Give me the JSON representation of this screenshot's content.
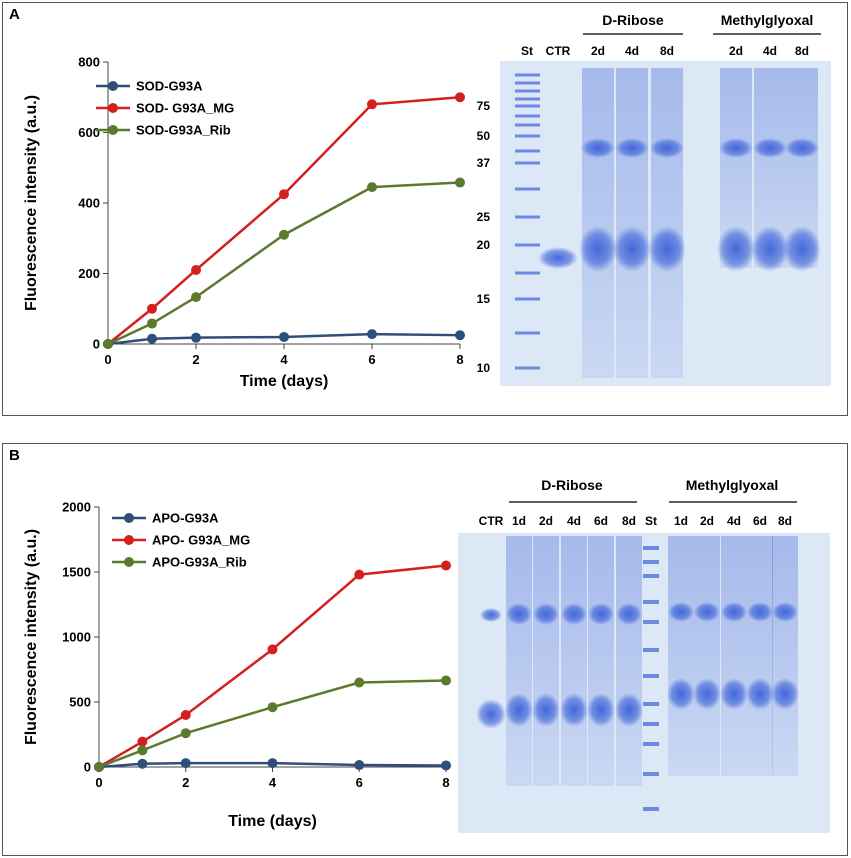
{
  "panels": {
    "a": {
      "label": "A",
      "gel": {
        "lanes": [
          "St",
          "CTR",
          "2d",
          "4d",
          "8d",
          "2d",
          "4d",
          "8d"
        ],
        "groups": [
          "D-Ribose",
          "Methylglyoxal"
        ],
        "markers": [
          "75",
          "50",
          "37",
          "25",
          "20",
          "15",
          "10"
        ]
      }
    },
    "b": {
      "label": "B",
      "gel": {
        "lanes": [
          "CTR",
          "1d",
          "2d",
          "4d",
          "6d",
          "8d",
          "St",
          "1d",
          "2d",
          "4d",
          "6d",
          "8d"
        ],
        "groups": [
          "D-Ribose",
          "Methylglyoxal"
        ]
      }
    }
  },
  "colors": {
    "blue": "#2e4f7a",
    "red": "#d41f1f",
    "green": "#5c7a2e",
    "gel_bg": "#dde8f6",
    "band": "#3d63d8"
  },
  "chart_data": [
    {
      "type": "line",
      "panel": "A",
      "title": "",
      "xlabel": "Time (days)",
      "ylabel": "Fluorescence intensity (a.u.)",
      "x": [
        0,
        1,
        2,
        4,
        6,
        8
      ],
      "xticks": [
        0,
        2,
        4,
        6,
        8
      ],
      "yticks": [
        0,
        200,
        400,
        600,
        800
      ],
      "xlim": [
        0,
        8
      ],
      "ylim": [
        0,
        800
      ],
      "legend_position": "top-left",
      "series": [
        {
          "name": "SOD-G93A",
          "color": "#2e4f7a",
          "values": [
            0,
            15,
            18,
            20,
            28,
            25
          ]
        },
        {
          "name": "SOD- G93A_MG",
          "color": "#d41f1f",
          "values": [
            0,
            100,
            210,
            425,
            680,
            700
          ]
        },
        {
          "name": "SOD-G93A_Rib",
          "color": "#5c7a2e",
          "values": [
            0,
            58,
            133,
            310,
            445,
            458
          ]
        }
      ]
    },
    {
      "type": "line",
      "panel": "B",
      "title": "",
      "xlabel": "Time (days)",
      "ylabel": "Fluorescence intensity (a.u.)",
      "x": [
        0,
        1,
        2,
        4,
        6,
        8
      ],
      "xticks": [
        0,
        2,
        4,
        6,
        8
      ],
      "yticks": [
        0,
        500,
        1000,
        1500,
        2000
      ],
      "xlim": [
        0,
        8
      ],
      "ylim": [
        0,
        2000
      ],
      "legend_position": "top-left",
      "series": [
        {
          "name": "APO-G93A",
          "color": "#2e4f7a",
          "values": [
            0,
            25,
            30,
            30,
            15,
            12
          ]
        },
        {
          "name": "APO- G93A_MG",
          "color": "#d41f1f",
          "values": [
            0,
            195,
            400,
            905,
            1480,
            1550
          ]
        },
        {
          "name": "APO-G93A_Rib",
          "color": "#5c7a2e",
          "values": [
            0,
            128,
            260,
            460,
            650,
            665
          ]
        }
      ]
    }
  ]
}
